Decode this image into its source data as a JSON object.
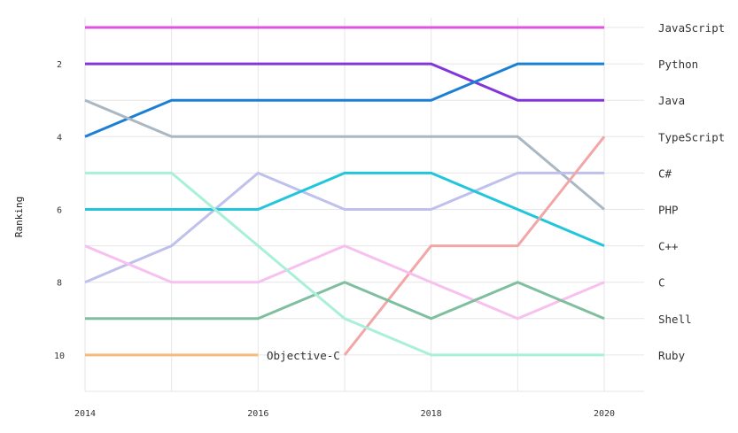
{
  "chart_data": {
    "type": "line",
    "ylabel": "Ranking",
    "xlabel": "",
    "x": [
      2014,
      2015,
      2016,
      2017,
      2018,
      2019,
      2020
    ],
    "x_tick_labels": [
      "2014",
      "2016",
      "2018",
      "2020"
    ],
    "x_ticks": [
      2014,
      2016,
      2018,
      2020
    ],
    "y_tick_labels": [
      "2",
      "4",
      "6",
      "8",
      "10"
    ],
    "y_ticks": [
      2,
      4,
      6,
      8,
      10
    ],
    "ylim": [
      11,
      0.5
    ],
    "xlim": [
      2014,
      2020.45
    ],
    "y_inverted": true,
    "grid": true,
    "series": [
      {
        "name": "JavaScript",
        "color": "#e052e0",
        "values": [
          1,
          1,
          1,
          1,
          1,
          1,
          1
        ]
      },
      {
        "name": "Python",
        "color": "#8236d9",
        "values": [
          2,
          2,
          2,
          2,
          2,
          3,
          3
        ]
      },
      {
        "name": "Java",
        "color": "#1b7fd4",
        "values": [
          4,
          3,
          3,
          3,
          3,
          2,
          2
        ]
      },
      {
        "name": "TypeScript",
        "color": "#aab8c4",
        "values": [
          3,
          4,
          4,
          4,
          4,
          4,
          6
        ]
      },
      {
        "name": "C#",
        "color": "#bfc0ec",
        "values": [
          8,
          7,
          5,
          6,
          6,
          5,
          5
        ]
      },
      {
        "name": "PHP",
        "color": "#22c6dc",
        "values": [
          6,
          6,
          6,
          5,
          5,
          6,
          7
        ]
      },
      {
        "name": "C++",
        "color": "#f2a6a8",
        "values": [
          null,
          null,
          null,
          10,
          7,
          7,
          4
        ]
      },
      {
        "name": "C",
        "color": "#f7c0ef",
        "values": [
          7,
          8,
          8,
          7,
          8,
          9,
          8
        ]
      },
      {
        "name": "Shell",
        "color": "#7fbf9f",
        "values": [
          9,
          9,
          9,
          8,
          9,
          8,
          9
        ]
      },
      {
        "name": "Ruby",
        "color": "#a8f0d8",
        "values": [
          5,
          5,
          7,
          9,
          10,
          10,
          10
        ]
      },
      {
        "name": "Objective-C",
        "color": "#f5b97a",
        "values": [
          10,
          10,
          10,
          null,
          null,
          null,
          null
        ]
      }
    ],
    "right_labels": [
      "JavaScript",
      "Python",
      "Java",
      "TypeScript",
      "C#",
      "PHP",
      "C++",
      "C",
      "Shell",
      "Ruby"
    ],
    "inline_label": {
      "text": "Objective-C"
    }
  }
}
